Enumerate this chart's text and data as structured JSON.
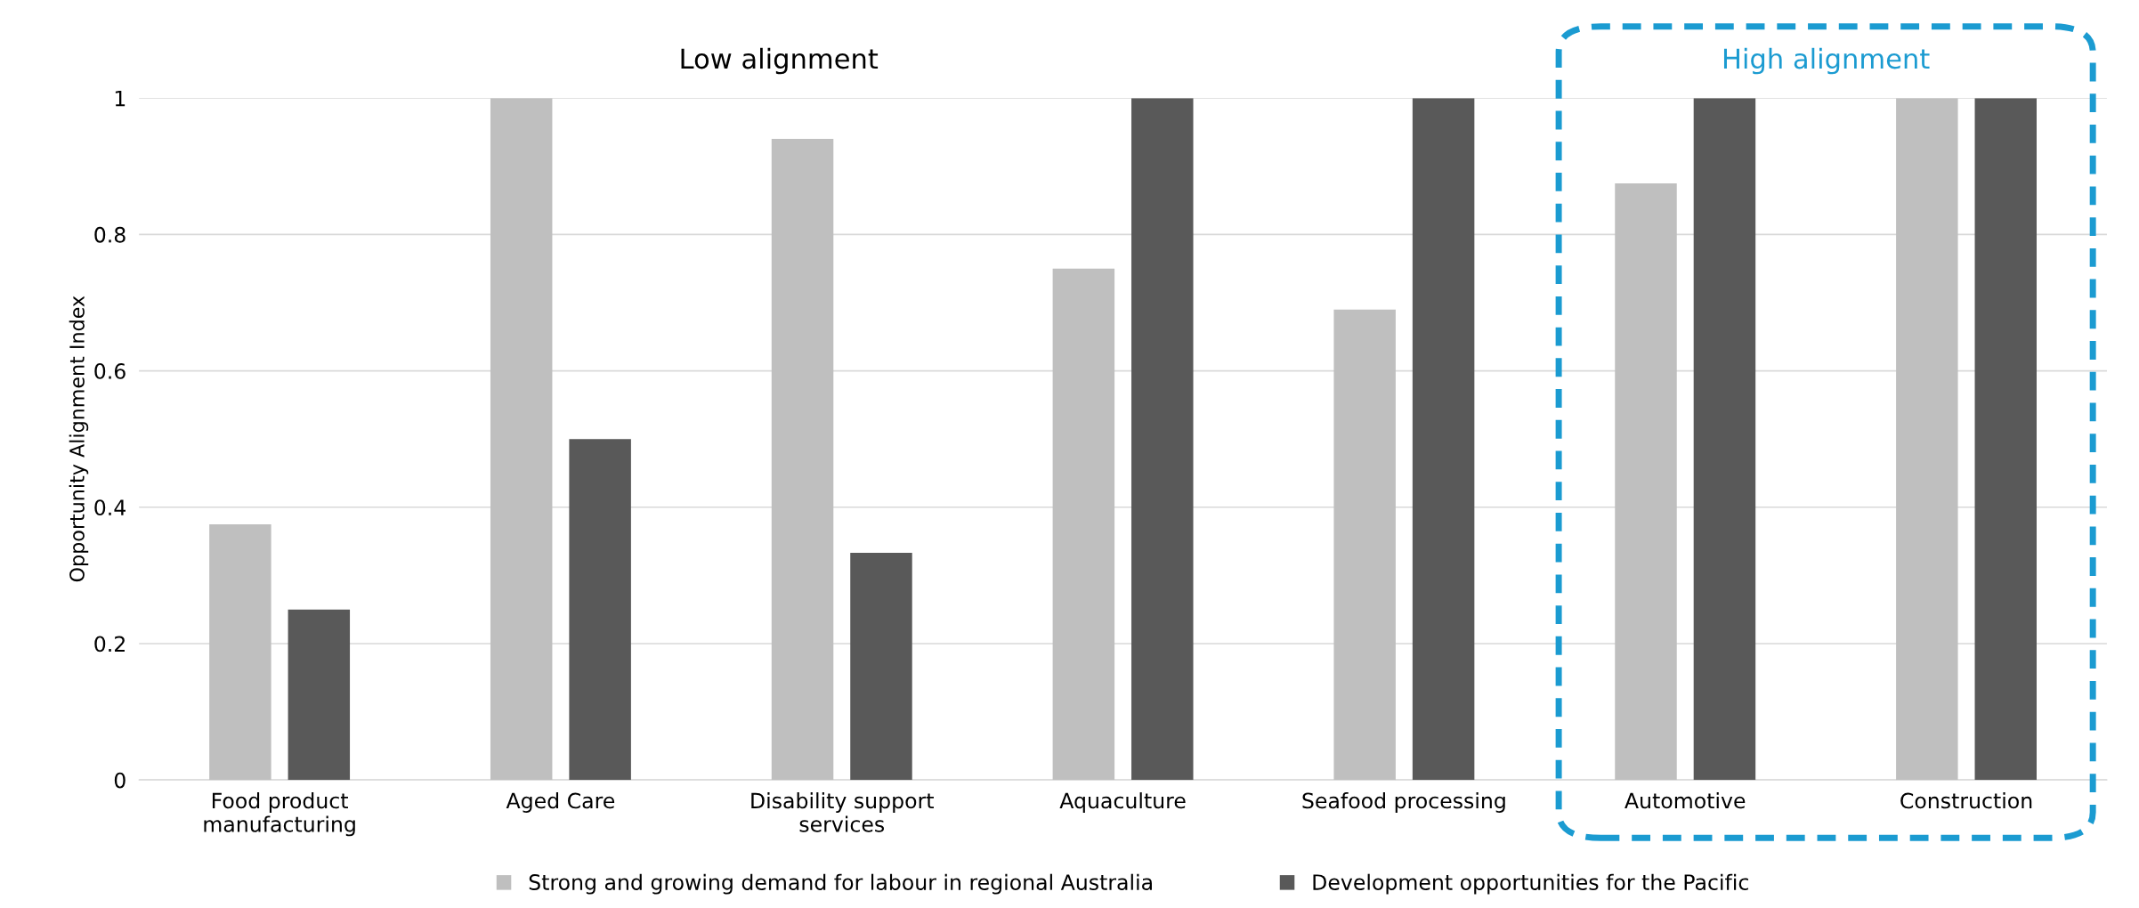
{
  "chart_data": {
    "type": "bar",
    "ylabel": "Opportunity Alignment Index",
    "categories": [
      "Food product\nmanufacturing",
      "Aged Care",
      "Disability support\nservices",
      "Aquaculture",
      "Seafood processing",
      "Automotive",
      "Construction"
    ],
    "series": [
      {
        "name": "Strong and growing demand for labour in regional Australia",
        "color": "#bfbfbf",
        "values": [
          0.375,
          1,
          0.94,
          0.75,
          0.69,
          0.875,
          1
        ]
      },
      {
        "name": "Development opportunities for the Pacific",
        "color": "#595959",
        "values": [
          0.25,
          0.5,
          0.333,
          1,
          1,
          1,
          1
        ]
      }
    ],
    "ylim": [
      0,
      1
    ],
    "yticks": [
      0,
      0.2,
      0.4,
      0.6,
      0.8,
      1
    ],
    "grid": "y",
    "legend": "bottom",
    "annotations": [
      "Low alignment",
      "High alignment"
    ]
  }
}
